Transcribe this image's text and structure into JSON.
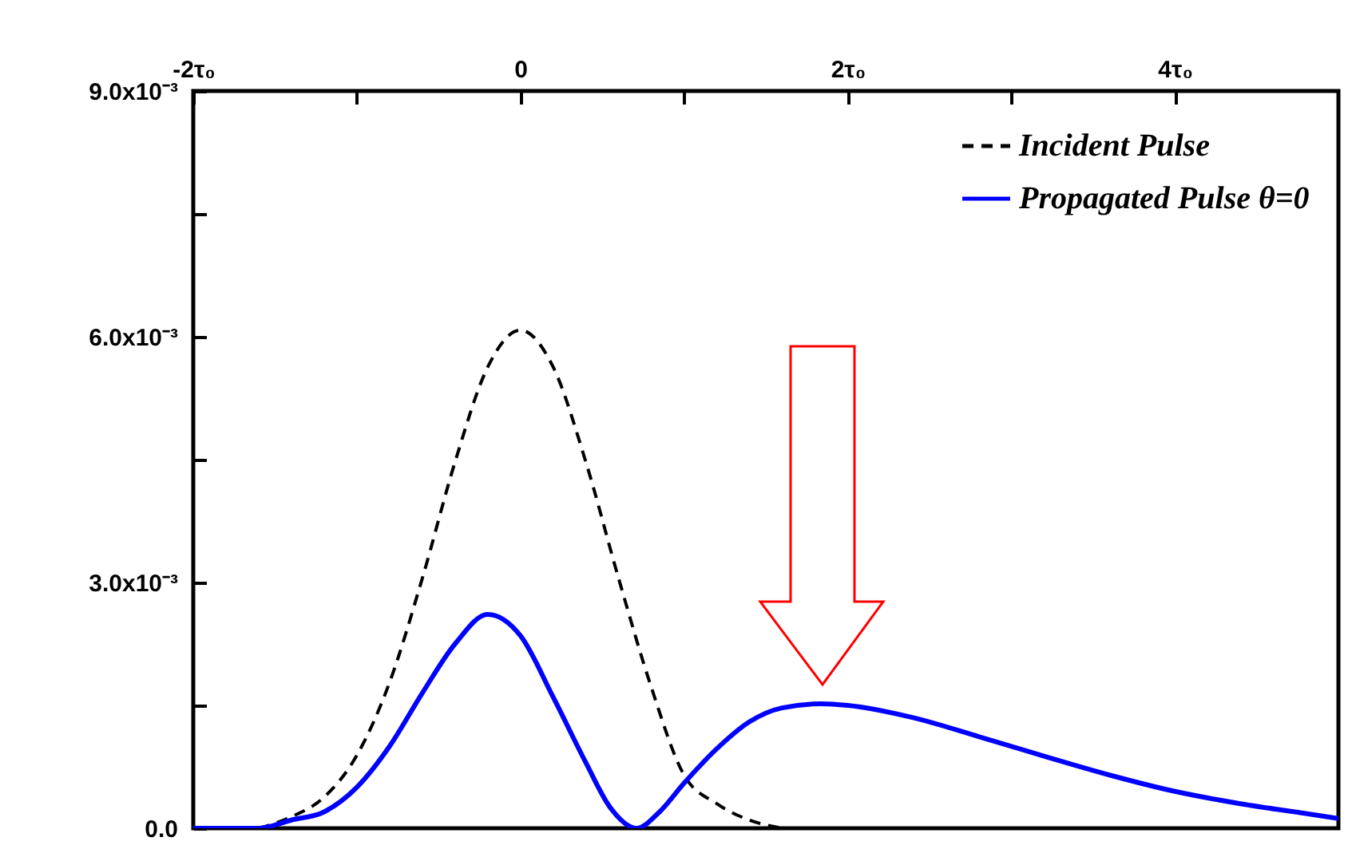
{
  "chart_data": {
    "type": "line",
    "xlim": [
      -2,
      5
    ],
    "xticks": [
      {
        "value": -2,
        "label": "-2τ₀"
      },
      {
        "value": -1,
        "label": null
      },
      "0",
      {
        "value": 1,
        "label": null
      },
      {
        "value": 2,
        "label": "2τ₀"
      },
      {
        "value": 3,
        "label": null
      },
      {
        "value": 4,
        "label": "4τ₀"
      }
    ],
    "ylim": [
      0,
      0.009
    ],
    "yticks": [
      {
        "value": 0,
        "label": "0.0"
      },
      {
        "value": 0.0015,
        "label": null
      },
      {
        "value": 0.003,
        "label": "3.0x10⁻³"
      },
      {
        "value": 0.0045,
        "label": null
      },
      {
        "value": 0.006,
        "label": "6.0x10⁻³"
      },
      {
        "value": 0.0075,
        "label": null
      },
      {
        "value": 0.009,
        "label": "9.0x10⁻³"
      }
    ],
    "legend": "top right",
    "grid": false,
    "series": [
      {
        "name": "Incident Pulse",
        "color": "#000000",
        "line_style": "dashed",
        "x": [
          -1.6,
          -1.4,
          -1.2,
          -1.0,
          -0.8,
          -0.6,
          -0.4,
          -0.2,
          0,
          0.2,
          0.4,
          0.6,
          0.8,
          1.0,
          1.2,
          1.4,
          1.6
        ],
        "values": [
          0,
          0.00014,
          0.00038,
          0.00089,
          0.00178,
          0.00305,
          0.00447,
          0.00563,
          0.00608,
          0.00563,
          0.00447,
          0.00305,
          0.00172,
          0.00065,
          0.0003,
          0.0001,
          0
        ]
      },
      {
        "name": "Propagated Pulse θ=0",
        "color": "#0000ff",
        "line_style": "solid",
        "x": [
          -2,
          -1.6,
          -1.4,
          -1.2,
          -1.0,
          -0.8,
          -0.6,
          -0.4,
          -0.2,
          0,
          0.2,
          0.4,
          0.55,
          0.71,
          0.85,
          1.0,
          1.2,
          1.4,
          1.6,
          1.84,
          2.0,
          2.4,
          2.8,
          3.2,
          3.6,
          4.0,
          4.4,
          4.8,
          5.0
        ],
        "values": [
          0,
          0,
          0.0001,
          0.0002,
          0.0005,
          0.001,
          0.00165,
          0.00225,
          0.00261,
          0.00235,
          0.0016,
          0.0008,
          0.00025,
          0,
          0.0002,
          0.00055,
          0.00097,
          0.0013,
          0.00147,
          0.00152,
          0.0015,
          0.00135,
          0.00112,
          0.00088,
          0.00065,
          0.00045,
          0.0003,
          0.00018,
          0.00012
        ]
      }
    ]
  }
}
